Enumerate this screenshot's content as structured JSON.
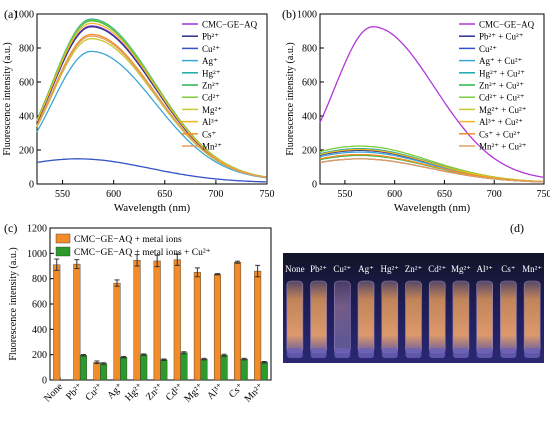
{
  "panels": {
    "a": {
      "label": "(a)"
    },
    "b": {
      "label": "(b)"
    },
    "c": {
      "label": "(c)"
    },
    "d": {
      "label": "(d)"
    }
  },
  "chart_data": [
    {
      "id": "a",
      "type": "line",
      "xlabel": "Wavelength (nm)",
      "ylabel": "Fluorescence intensity (a.u.)",
      "xlim": [
        525,
        750
      ],
      "ylim": [
        0,
        1000
      ],
      "xticks": [
        550,
        600,
        650,
        700,
        750
      ],
      "yticks": [
        0,
        200,
        400,
        600,
        800,
        1000
      ],
      "legend": "top-right",
      "series": [
        {
          "name": "CMC−GE−AQ",
          "color": "#9b30d9",
          "peak": 910
        },
        {
          "name": "Pb²⁺",
          "color": "#2f2f8f",
          "peak": 905
        },
        {
          "name": "Cu²⁺",
          "color": "#3553c7",
          "peak": 140
        },
        {
          "name": "Ag⁺",
          "color": "#3aa6d8",
          "peak": 760
        },
        {
          "name": "Hg²⁺",
          "color": "#1aa7a7",
          "peak": 950
        },
        {
          "name": "Zn²⁺",
          "color": "#27b44a",
          "peak": 940
        },
        {
          "name": "Cd²⁺",
          "color": "#7ccc3b",
          "peak": 945
        },
        {
          "name": "Mg²⁺",
          "color": "#c8c830",
          "peak": 835
        },
        {
          "name": "Al³⁺",
          "color": "#f2b81f",
          "peak": 925
        },
        {
          "name": "Cs⁺",
          "color": "#f28c28",
          "peak": 860
        },
        {
          "name": "Mn²⁺",
          "color": "#e0a060",
          "peak": 850
        }
      ]
    },
    {
      "id": "b",
      "type": "line",
      "xlabel": "Wavelength (nm)",
      "ylabel": "Fluorescence intensity (a.u.)",
      "xlim": [
        525,
        750
      ],
      "ylim": [
        0,
        1000
      ],
      "xticks": [
        550,
        600,
        650,
        700,
        750
      ],
      "yticks": [
        0,
        200,
        400,
        600,
        800,
        1000
      ],
      "legend": "top-right",
      "series": [
        {
          "name": "CMC−GE−AQ",
          "color": "#b236d9",
          "peak": 905
        },
        {
          "name": "Pb²⁺ + Cu²⁺",
          "color": "#2f2f8f",
          "peak": 190
        },
        {
          "name": "Cu²⁺",
          "color": "#3553c7",
          "peak": 140
        },
        {
          "name": "Ag⁺ + Cu²⁺",
          "color": "#3aa6d8",
          "peak": 180
        },
        {
          "name": "Hg²⁺ + Cu²⁺",
          "color": "#1aa7a7",
          "peak": 200
        },
        {
          "name": "Zn²⁺ + Cu²⁺",
          "color": "#27b44a",
          "peak": 160
        },
        {
          "name": "Cd²⁺ + Cu²⁺",
          "color": "#7ccc3b",
          "peak": 215
        },
        {
          "name": "Mg²⁺ + Cu²⁺",
          "color": "#c8c830",
          "peak": 165
        },
        {
          "name": "Al³⁺ + Cu²⁺",
          "color": "#f2b81f",
          "peak": 195
        },
        {
          "name": "Cs⁺ + Cu²⁺",
          "color": "#f28c28",
          "peak": 165
        },
        {
          "name": "Mn²⁺ + Cu²⁺",
          "color": "#e0a060",
          "peak": 140
        }
      ]
    },
    {
      "id": "c",
      "type": "bar",
      "ylabel": "Fluorescence intensity (a.u.)",
      "ylim": [
        0,
        1200
      ],
      "yticks": [
        0,
        200,
        400,
        600,
        800,
        1000,
        1200
      ],
      "legend": "top-left",
      "categories": [
        "None",
        "Pb²⁺",
        "Cu²⁺",
        "Ag⁺",
        "Hg²⁺",
        "Zn²⁺",
        "Cd²⁺",
        "Mg²⁺",
        "Al³⁺",
        "Cs⁺",
        "Mn²⁺"
      ],
      "series": [
        {
          "name": "CMC−GE−AQ + metal ions",
          "color": "#f28c28",
          "values": [
            910,
            915,
            140,
            765,
            945,
            940,
            950,
            850,
            835,
            930,
            860
          ],
          "errors": [
            45,
            35,
            10,
            25,
            45,
            45,
            45,
            35,
            5,
            8,
            45
          ]
        },
        {
          "name": "CMC−GE−AQ + metal ions + Cu²⁺",
          "color": "#2c9a2c",
          "values": [
            0,
            195,
            130,
            180,
            200,
            160,
            215,
            165,
            195,
            165,
            140
          ],
          "errors": [
            0,
            6,
            6,
            6,
            6,
            6,
            8,
            6,
            8,
            6,
            6
          ]
        }
      ]
    }
  ],
  "photo": {
    "labels": [
      "None",
      "Pb²⁺",
      "Cu²⁺",
      "Ag⁺",
      "Hg²⁺",
      "Zn²⁺",
      "Cd²⁺",
      "Mg²⁺",
      "Al³⁺",
      "Cs⁺",
      "Mn²⁺"
    ]
  }
}
